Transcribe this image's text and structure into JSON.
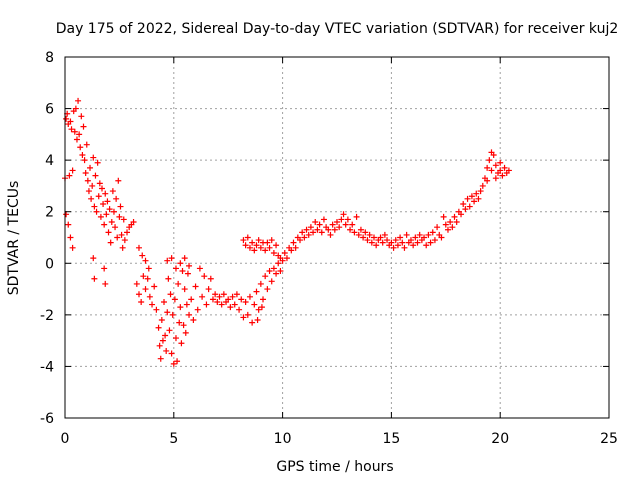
{
  "chart_data": {
    "type": "scatter",
    "title": "Day 175 of 2022, Sidereal Day-to-day VTEC variation (SDTVAR) for receiver kuj2",
    "xlabel": "GPS time / hours",
    "ylabel": "SDTVAR / TECUs",
    "xlim": [
      0,
      25
    ],
    "ylim": [
      -6,
      8
    ],
    "xticks": [
      "0",
      "5",
      "10",
      "15",
      "20",
      "25"
    ],
    "yticks": [
      "-6",
      "-4",
      "-2",
      "0",
      "2",
      "4",
      "6",
      "8"
    ],
    "grid": true,
    "marker": "plus",
    "color": "#ff0000",
    "series": [
      {
        "name": "SDTVAR",
        "points": [
          [
            0.0,
            3.3
          ],
          [
            0.05,
            5.6
          ],
          [
            0.1,
            5.8
          ],
          [
            0.15,
            5.4
          ],
          [
            0.2,
            3.4
          ],
          [
            0.25,
            5.5
          ],
          [
            0.3,
            5.2
          ],
          [
            0.35,
            3.6
          ],
          [
            0.4,
            5.9
          ],
          [
            0.45,
            5.1
          ],
          [
            0.5,
            6.0
          ],
          [
            0.55,
            4.8
          ],
          [
            0.6,
            6.3
          ],
          [
            0.65,
            5.0
          ],
          [
            0.7,
            4.5
          ],
          [
            0.75,
            5.7
          ],
          [
            0.8,
            4.2
          ],
          [
            0.85,
            5.3
          ],
          [
            0.9,
            4.0
          ],
          [
            0.95,
            3.5
          ],
          [
            0.05,
            1.9
          ],
          [
            0.15,
            1.5
          ],
          [
            0.25,
            1.0
          ],
          [
            0.35,
            0.6
          ],
          [
            1.0,
            4.6
          ],
          [
            1.05,
            3.2
          ],
          [
            1.1,
            2.8
          ],
          [
            1.15,
            3.7
          ],
          [
            1.2,
            2.5
          ],
          [
            1.25,
            3.0
          ],
          [
            1.3,
            4.1
          ],
          [
            1.35,
            2.2
          ],
          [
            1.4,
            3.4
          ],
          [
            1.45,
            2.0
          ],
          [
            1.5,
            3.9
          ],
          [
            1.55,
            2.6
          ],
          [
            1.6,
            3.1
          ],
          [
            1.65,
            1.8
          ],
          [
            1.7,
            2.9
          ],
          [
            1.75,
            2.3
          ],
          [
            1.8,
            1.5
          ],
          [
            1.85,
            2.7
          ],
          [
            1.9,
            1.9
          ],
          [
            1.95,
            2.4
          ],
          [
            2.0,
            1.2
          ],
          [
            2.05,
            2.1
          ],
          [
            2.1,
            0.8
          ],
          [
            2.15,
            1.6
          ],
          [
            2.2,
            2.8
          ],
          [
            2.25,
            2.0
          ],
          [
            2.3,
            1.4
          ],
          [
            2.35,
            2.5
          ],
          [
            2.4,
            1.0
          ],
          [
            2.45,
            3.2
          ],
          [
            2.5,
            1.8
          ],
          [
            2.55,
            2.2
          ],
          [
            2.6,
            1.1
          ],
          [
            2.65,
            0.6
          ],
          [
            2.7,
            1.7
          ],
          [
            2.75,
            0.9
          ],
          [
            2.85,
            1.2
          ],
          [
            2.95,
            1.4
          ],
          [
            3.05,
            1.5
          ],
          [
            3.15,
            1.6
          ],
          [
            1.3,
            0.2
          ],
          [
            1.35,
            -0.6
          ],
          [
            1.8,
            -0.2
          ],
          [
            1.85,
            -0.8
          ],
          [
            3.3,
            -0.8
          ],
          [
            3.4,
            -1.2
          ],
          [
            3.5,
            -1.5
          ],
          [
            3.6,
            -0.5
          ],
          [
            3.7,
            -1.0
          ],
          [
            3.8,
            -0.6
          ],
          [
            3.9,
            -1.3
          ],
          [
            4.0,
            -1.6
          ],
          [
            4.1,
            -0.9
          ],
          [
            3.4,
            0.6
          ],
          [
            3.55,
            0.3
          ],
          [
            3.7,
            0.1
          ],
          [
            3.85,
            -0.2
          ],
          [
            4.2,
            -1.8
          ],
          [
            4.3,
            -2.5
          ],
          [
            4.35,
            -3.2
          ],
          [
            4.4,
            -3.7
          ],
          [
            4.45,
            -2.2
          ],
          [
            4.5,
            -3.0
          ],
          [
            4.55,
            -1.5
          ],
          [
            4.6,
            -2.8
          ],
          [
            4.65,
            -3.4
          ],
          [
            4.7,
            -1.9
          ],
          [
            4.75,
            -0.6
          ],
          [
            4.8,
            -2.6
          ],
          [
            4.85,
            -1.2
          ],
          [
            4.9,
            -3.5
          ],
          [
            4.95,
            -2.0
          ],
          [
            5.0,
            -3.9
          ],
          [
            5.05,
            -1.4
          ],
          [
            5.1,
            -2.9
          ],
          [
            5.15,
            -3.8
          ],
          [
            5.2,
            -0.8
          ],
          [
            5.25,
            -2.3
          ],
          [
            5.3,
            -1.7
          ],
          [
            5.35,
            -3.1
          ],
          [
            5.4,
            -0.3
          ],
          [
            5.45,
            -2.4
          ],
          [
            5.5,
            -1.0
          ],
          [
            5.55,
            -2.7
          ],
          [
            5.6,
            -1.6
          ],
          [
            5.65,
            -0.4
          ],
          [
            5.7,
            -2.0
          ],
          [
            4.7,
            0.1
          ],
          [
            4.9,
            0.2
          ],
          [
            5.1,
            -0.2
          ],
          [
            5.3,
            0.0
          ],
          [
            5.5,
            0.2
          ],
          [
            5.7,
            -0.1
          ],
          [
            5.8,
            -1.4
          ],
          [
            5.9,
            -2.2
          ],
          [
            6.0,
            -0.9
          ],
          [
            6.1,
            -1.8
          ],
          [
            6.2,
            -0.2
          ],
          [
            6.3,
            -1.3
          ],
          [
            6.4,
            -0.5
          ],
          [
            6.5,
            -1.6
          ],
          [
            6.6,
            -1.0
          ],
          [
            6.7,
            -0.6
          ],
          [
            6.8,
            -1.4
          ],
          [
            6.9,
            -1.2
          ],
          [
            7.0,
            -1.5
          ],
          [
            7.1,
            -1.3
          ],
          [
            7.2,
            -1.6
          ],
          [
            7.3,
            -1.2
          ],
          [
            7.4,
            -1.5
          ],
          [
            7.5,
            -1.4
          ],
          [
            7.6,
            -1.7
          ],
          [
            7.7,
            -1.3
          ],
          [
            7.8,
            -1.6
          ],
          [
            7.9,
            -1.2
          ],
          [
            8.0,
            -1.8
          ],
          [
            8.1,
            -1.4
          ],
          [
            8.2,
            -2.1
          ],
          [
            8.3,
            -1.5
          ],
          [
            8.4,
            -2.0
          ],
          [
            8.5,
            -1.3
          ],
          [
            8.6,
            -2.3
          ],
          [
            8.7,
            -1.6
          ],
          [
            8.8,
            -1.1
          ],
          [
            8.9,
            -1.8
          ],
          [
            9.0,
            -0.8
          ],
          [
            9.1,
            -1.4
          ],
          [
            9.2,
            -0.5
          ],
          [
            9.3,
            -1.0
          ],
          [
            9.4,
            -0.3
          ],
          [
            9.5,
            -0.7
          ],
          [
            8.85,
            -2.2
          ],
          [
            9.05,
            -1.7
          ],
          [
            8.2,
            0.9
          ],
          [
            8.3,
            0.7
          ],
          [
            8.4,
            1.0
          ],
          [
            8.5,
            0.6
          ],
          [
            8.6,
            0.8
          ],
          [
            8.7,
            0.5
          ],
          [
            8.8,
            0.7
          ],
          [
            8.9,
            0.9
          ],
          [
            9.0,
            0.6
          ],
          [
            9.1,
            0.8
          ],
          [
            9.2,
            0.5
          ],
          [
            9.3,
            0.8
          ],
          [
            9.4,
            0.6
          ],
          [
            9.5,
            0.9
          ],
          [
            9.6,
            0.4
          ],
          [
            9.7,
            0.7
          ],
          [
            9.8,
            0.3
          ],
          [
            9.9,
            0.2
          ],
          [
            9.6,
            -0.2
          ],
          [
            9.7,
            -0.4
          ],
          [
            9.8,
            0.0
          ],
          [
            9.9,
            -0.3
          ],
          [
            10.0,
            0.1
          ],
          [
            10.1,
            0.4
          ],
          [
            10.2,
            0.2
          ],
          [
            10.3,
            0.6
          ],
          [
            10.4,
            0.5
          ],
          [
            10.5,
            0.8
          ],
          [
            10.6,
            0.6
          ],
          [
            10.7,
            1.0
          ],
          [
            10.8,
            0.9
          ],
          [
            10.9,
            1.2
          ],
          [
            11.0,
            1.0
          ],
          [
            11.1,
            1.3
          ],
          [
            11.2,
            1.1
          ],
          [
            11.3,
            1.4
          ],
          [
            11.4,
            1.2
          ],
          [
            11.5,
            1.6
          ],
          [
            11.6,
            1.3
          ],
          [
            11.7,
            1.5
          ],
          [
            11.8,
            1.2
          ],
          [
            11.9,
            1.7
          ],
          [
            12.0,
            1.4
          ],
          [
            12.1,
            1.3
          ],
          [
            12.2,
            1.1
          ],
          [
            12.3,
            1.5
          ],
          [
            12.4,
            1.3
          ],
          [
            12.5,
            1.6
          ],
          [
            12.6,
            1.4
          ],
          [
            12.7,
            1.7
          ],
          [
            12.8,
            1.9
          ],
          [
            12.9,
            1.5
          ],
          [
            13.0,
            1.7
          ],
          [
            13.1,
            1.3
          ],
          [
            13.2,
            1.5
          ],
          [
            13.3,
            1.2
          ],
          [
            13.4,
            1.8
          ],
          [
            13.5,
            1.1
          ],
          [
            13.6,
            1.3
          ],
          [
            13.7,
            1.0
          ],
          [
            13.8,
            1.2
          ],
          [
            13.9,
            0.9
          ],
          [
            14.0,
            1.1
          ],
          [
            14.1,
            0.8
          ],
          [
            14.2,
            1.0
          ],
          [
            14.3,
            0.7
          ],
          [
            14.4,
            0.9
          ],
          [
            14.5,
            1.0
          ],
          [
            14.6,
            0.8
          ],
          [
            14.7,
            1.1
          ],
          [
            14.8,
            0.9
          ],
          [
            14.9,
            0.7
          ],
          [
            15.0,
            0.8
          ],
          [
            15.1,
            0.6
          ],
          [
            15.2,
            0.9
          ],
          [
            15.3,
            0.7
          ],
          [
            15.4,
            1.0
          ],
          [
            15.5,
            0.8
          ],
          [
            15.6,
            0.6
          ],
          [
            15.7,
            1.1
          ],
          [
            15.8,
            0.8
          ],
          [
            15.9,
            0.9
          ],
          [
            16.0,
            0.7
          ],
          [
            16.1,
            1.0
          ],
          [
            16.2,
            0.8
          ],
          [
            16.3,
            1.1
          ],
          [
            16.4,
            0.9
          ],
          [
            16.5,
            1.0
          ],
          [
            16.6,
            0.7
          ],
          [
            16.7,
            1.1
          ],
          [
            16.8,
            0.8
          ],
          [
            16.9,
            1.2
          ],
          [
            17.0,
            0.9
          ],
          [
            17.1,
            1.4
          ],
          [
            17.2,
            1.1
          ],
          [
            17.3,
            1.0
          ],
          [
            17.4,
            1.8
          ],
          [
            17.5,
            1.5
          ],
          [
            17.6,
            1.3
          ],
          [
            17.7,
            1.6
          ],
          [
            17.8,
            1.4
          ],
          [
            17.9,
            1.8
          ],
          [
            18.0,
            1.6
          ],
          [
            18.1,
            2.0
          ],
          [
            18.2,
            1.9
          ],
          [
            18.3,
            2.3
          ],
          [
            18.4,
            2.1
          ],
          [
            18.5,
            2.5
          ],
          [
            18.6,
            2.2
          ],
          [
            18.7,
            2.6
          ],
          [
            18.8,
            2.4
          ],
          [
            18.9,
            2.7
          ],
          [
            19.0,
            2.5
          ],
          [
            19.1,
            2.8
          ],
          [
            19.2,
            3.0
          ],
          [
            19.3,
            3.3
          ],
          [
            19.4,
            3.7
          ],
          [
            19.5,
            4.0
          ],
          [
            19.6,
            4.3
          ],
          [
            19.7,
            4.2
          ],
          [
            19.8,
            3.8
          ],
          [
            19.9,
            3.5
          ],
          [
            20.0,
            3.6
          ],
          [
            20.1,
            3.4
          ],
          [
            20.2,
            3.7
          ],
          [
            20.3,
            3.5
          ],
          [
            20.4,
            3.6
          ],
          [
            19.4,
            3.2
          ],
          [
            19.6,
            3.6
          ],
          [
            19.8,
            3.3
          ],
          [
            20.0,
            3.9
          ]
        ]
      }
    ]
  }
}
